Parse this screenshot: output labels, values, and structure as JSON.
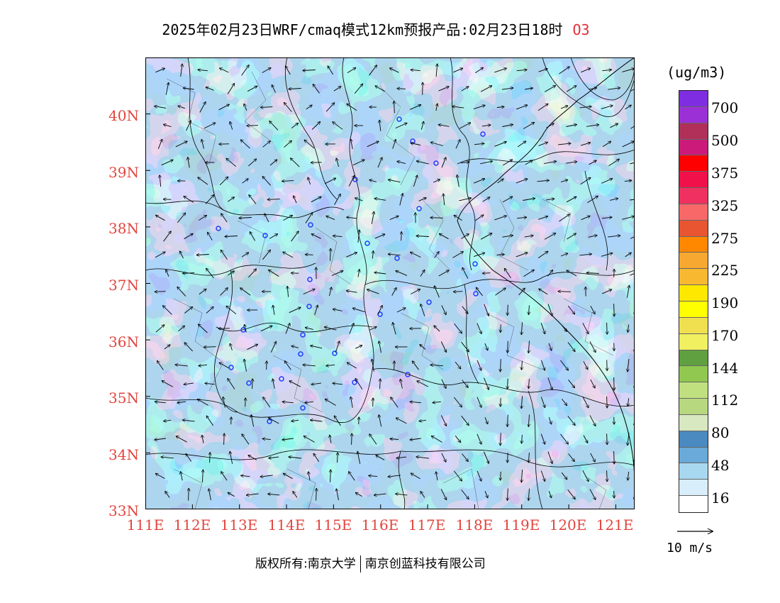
{
  "title": {
    "main": "2025年02月23日WRF/cmaq模式12km预报产品:02月23日18时",
    "pollutant": "O3"
  },
  "axes": {
    "lat_labels": [
      "40N",
      "39N",
      "38N",
      "37N",
      "36N",
      "35N",
      "34N",
      "33N"
    ],
    "lat_values": [
      40,
      39,
      38,
      37,
      36,
      35,
      34,
      33
    ],
    "lon_labels": [
      "111E",
      "112E",
      "113E",
      "114E",
      "115E",
      "116E",
      "117E",
      "118E",
      "119E",
      "120E",
      "121E"
    ],
    "lon_values": [
      111,
      112,
      113,
      114,
      115,
      116,
      117,
      118,
      119,
      120,
      121
    ],
    "lon_range": [
      111,
      121.4
    ],
    "lat_range": [
      33,
      41
    ]
  },
  "legend": {
    "unit": "(ug/m3)",
    "colors": [
      "#7e2ee0",
      "#9b30d6",
      "#b0305a",
      "#cc1a7a",
      "#ff0000",
      "#f0104a",
      "#f03060",
      "#f86868",
      "#e85530",
      "#ff8800",
      "#f7a830",
      "#f8b830",
      "#ffe800",
      "#ffff00",
      "#f0e050",
      "#f0f060",
      "#60a040",
      "#90c850",
      "#c0e080",
      "#b8d880",
      "#d8e8c0",
      "#4a8ac0",
      "#6aaad8",
      "#a8d8f0",
      "#d8eefa",
      "#ffffff"
    ],
    "levels": [
      "700",
      "500",
      "375",
      "325",
      "275",
      "225",
      "190",
      "170",
      "144",
      "112",
      "80",
      "48",
      "16"
    ]
  },
  "wind": {
    "reference_label": "10 m/s"
  },
  "footer": {
    "copyright_left": "版权所有:南京大学",
    "copyright_right": "南京创蓝科技有限公司"
  }
}
